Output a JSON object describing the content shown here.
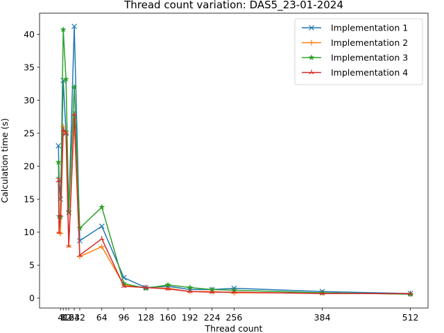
{
  "chart_data": {
    "type": "line",
    "title": "Thread count variation: DAS5_23-01-2024",
    "xlabel": "Thread count",
    "ylabel": "Calculation time (s)",
    "xlim": [
      -26.4,
      537.6
    ],
    "ylim": [
      -1.5,
      43.2
    ],
    "xticks": [
      4,
      8,
      12,
      16,
      24,
      32,
      64,
      96,
      128,
      160,
      192,
      224,
      256,
      384,
      512
    ],
    "yticks": [
      0,
      5,
      10,
      15,
      20,
      25,
      30,
      35,
      40
    ],
    "grid": false,
    "legend_position": "top-right",
    "x": [
      1,
      2,
      4,
      8,
      12,
      16,
      24,
      32,
      64,
      96,
      128,
      160,
      192,
      224,
      256,
      384,
      512
    ],
    "series": [
      {
        "name": "Implementation 1",
        "color": "#1f77b4",
        "marker": "x",
        "values": [
          23.1,
          18.0,
          15.0,
          33.0,
          25.0,
          13.0,
          41.2,
          8.7,
          10.9,
          3.1,
          1.6,
          1.8,
          1.3,
          1.3,
          1.5,
          1.0,
          0.7
        ]
      },
      {
        "name": "Implementation 2",
        "color": "#ff7f0e",
        "marker": "plus",
        "values": [
          18.1,
          10.0,
          9.8,
          26.0,
          25.0,
          8.0,
          27.0,
          6.3,
          7.8,
          2.0,
          1.6,
          1.5,
          1.0,
          1.0,
          0.8,
          0.8,
          0.6
        ]
      },
      {
        "name": "Implementation 3",
        "color": "#2ca02c",
        "marker": "star",
        "values": [
          20.6,
          12.4,
          12.3,
          40.7,
          33.2,
          13.0,
          32.0,
          10.6,
          13.8,
          2.2,
          1.5,
          2.0,
          1.6,
          1.3,
          1.2,
          0.8,
          0.6
        ]
      },
      {
        "name": "Implementation 4",
        "color": "#d62728",
        "marker": "tri",
        "values": [
          17.8,
          10.0,
          12.6,
          25.5,
          25.0,
          7.9,
          27.9,
          6.5,
          9.0,
          1.8,
          1.6,
          1.4,
          1.0,
          0.9,
          0.9,
          0.7,
          0.7
        ]
      }
    ]
  }
}
